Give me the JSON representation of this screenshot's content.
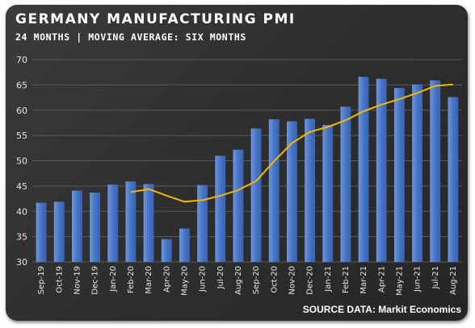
{
  "title": "GERMANY MANUFACTURING PMI",
  "subtitle": "24 MONTHS | MOVING AVERAGE: SIX MONTHS",
  "source": "SOURCE DATA: Markit Economics",
  "colors": {
    "bar": "#4472c4",
    "bar_light": "#6f95de",
    "line": "#f2b705",
    "grid": "#5a5a5a",
    "background": "#2f2f2f"
  },
  "chart_data": {
    "type": "bar",
    "title": "GERMANY MANUFACTURING PMI",
    "subtitle": "24 MONTHS | MOVING AVERAGE: SIX MONTHS",
    "categories": [
      "Sep-19",
      "Oct-19",
      "Nov-19",
      "Dec-19",
      "Jan-20",
      "Feb-20",
      "Mar-20",
      "Apr-20",
      "May-20",
      "Jun-20",
      "Jul-20",
      "Aug-20",
      "Sep-20",
      "Oct-20",
      "Nov-20",
      "Dec-20",
      "Jan-21",
      "Feb-21",
      "Mar-21",
      "Apr-21",
      "May-21",
      "Jun-21",
      "Jul-21",
      "Aug-21"
    ],
    "series": [
      {
        "type": "bar",
        "values": [
          41.7,
          41.9,
          44.1,
          43.7,
          45.3,
          45.9,
          45.4,
          34.5,
          36.6,
          45.2,
          51.0,
          52.2,
          56.4,
          58.2,
          57.8,
          58.3,
          57.1,
          60.7,
          66.6,
          66.2,
          64.4,
          65.1,
          65.9,
          62.6
        ]
      },
      {
        "type": "line",
        "values": [
          null,
          null,
          null,
          null,
          null,
          43.8,
          44.4,
          43.1,
          41.9,
          42.2,
          43.1,
          44.2,
          46.0,
          49.9,
          53.5,
          55.7,
          56.7,
          58.0,
          59.8,
          61.1,
          62.2,
          63.4,
          64.8,
          65.1
        ]
      }
    ],
    "ylim": [
      30,
      70
    ],
    "yticks": [
      "30",
      "35",
      "40",
      "45",
      "50",
      "55",
      "60",
      "65",
      "70"
    ],
    "grid": true,
    "legend": "none",
    "xlabel": "",
    "ylabel": ""
  }
}
